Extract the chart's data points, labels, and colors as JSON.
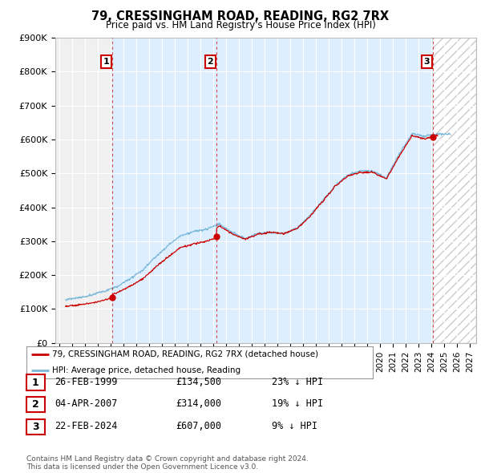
{
  "title": "79, CRESSINGHAM ROAD, READING, RG2 7RX",
  "subtitle": "Price paid vs. HM Land Registry's House Price Index (HPI)",
  "ylim": [
    0,
    900000
  ],
  "yticks": [
    0,
    100000,
    200000,
    300000,
    400000,
    500000,
    600000,
    700000,
    800000,
    900000
  ],
  "ytick_labels": [
    "£0",
    "£100K",
    "£200K",
    "£300K",
    "£400K",
    "£500K",
    "£600K",
    "£700K",
    "£800K",
    "£900K"
  ],
  "hpi_color": "#7ab8d9",
  "price_color": "#cc0000",
  "background_color": "#ffffff",
  "plot_bg_color": "#f0f0f0",
  "grid_color": "#ffffff",
  "shade_color": "#ddeeff",
  "hatch_color": "#cccccc",
  "transactions": [
    {
      "num": 1,
      "date": "26-FEB-1999",
      "price": 134500,
      "pct": "23% ↓ HPI",
      "x": 1999.15
    },
    {
      "num": 2,
      "date": "04-APR-2007",
      "price": 314000,
      "pct": "19% ↓ HPI",
      "x": 2007.27
    },
    {
      "num": 3,
      "date": "22-FEB-2024",
      "price": 607000,
      "pct": "9% ↓ HPI",
      "x": 2024.15
    }
  ],
  "legend_line1": "79, CRESSINGHAM ROAD, READING, RG2 7RX (detached house)",
  "legend_line2": "HPI: Average price, detached house, Reading",
  "footer": "Contains HM Land Registry data © Crown copyright and database right 2024.\nThis data is licensed under the Open Government Licence v3.0.",
  "xtick_years": [
    1995,
    1996,
    1997,
    1998,
    1999,
    2000,
    2001,
    2002,
    2003,
    2004,
    2005,
    2006,
    2007,
    2008,
    2009,
    2010,
    2011,
    2012,
    2013,
    2014,
    2015,
    2016,
    2017,
    2018,
    2019,
    2020,
    2021,
    2022,
    2023,
    2024,
    2025,
    2026,
    2027
  ],
  "xlim": [
    1994.7,
    2027.5
  ],
  "hpi_anchor_years": [
    1995.5,
    1996.5,
    1997.5,
    1998.5,
    1999.5,
    2000.5,
    2001.5,
    2002.5,
    2003.5,
    2004.5,
    2005.5,
    2006.5,
    2007.5,
    2008.5,
    2009.5,
    2010.5,
    2011.5,
    2012.5,
    2013.5,
    2014.5,
    2015.5,
    2016.5,
    2017.5,
    2018.5,
    2019.5,
    2020.5,
    2021.5,
    2022.5,
    2023.5,
    2024.5,
    2025.5
  ],
  "hpi_anchor_values": [
    128000,
    133000,
    141000,
    151000,
    165000,
    188000,
    213000,
    252000,
    287000,
    318000,
    328000,
    338000,
    352000,
    328000,
    312000,
    328000,
    332000,
    328000,
    342000,
    378000,
    422000,
    468000,
    498000,
    508000,
    508000,
    488000,
    558000,
    618000,
    608000,
    618000,
    620000
  ]
}
